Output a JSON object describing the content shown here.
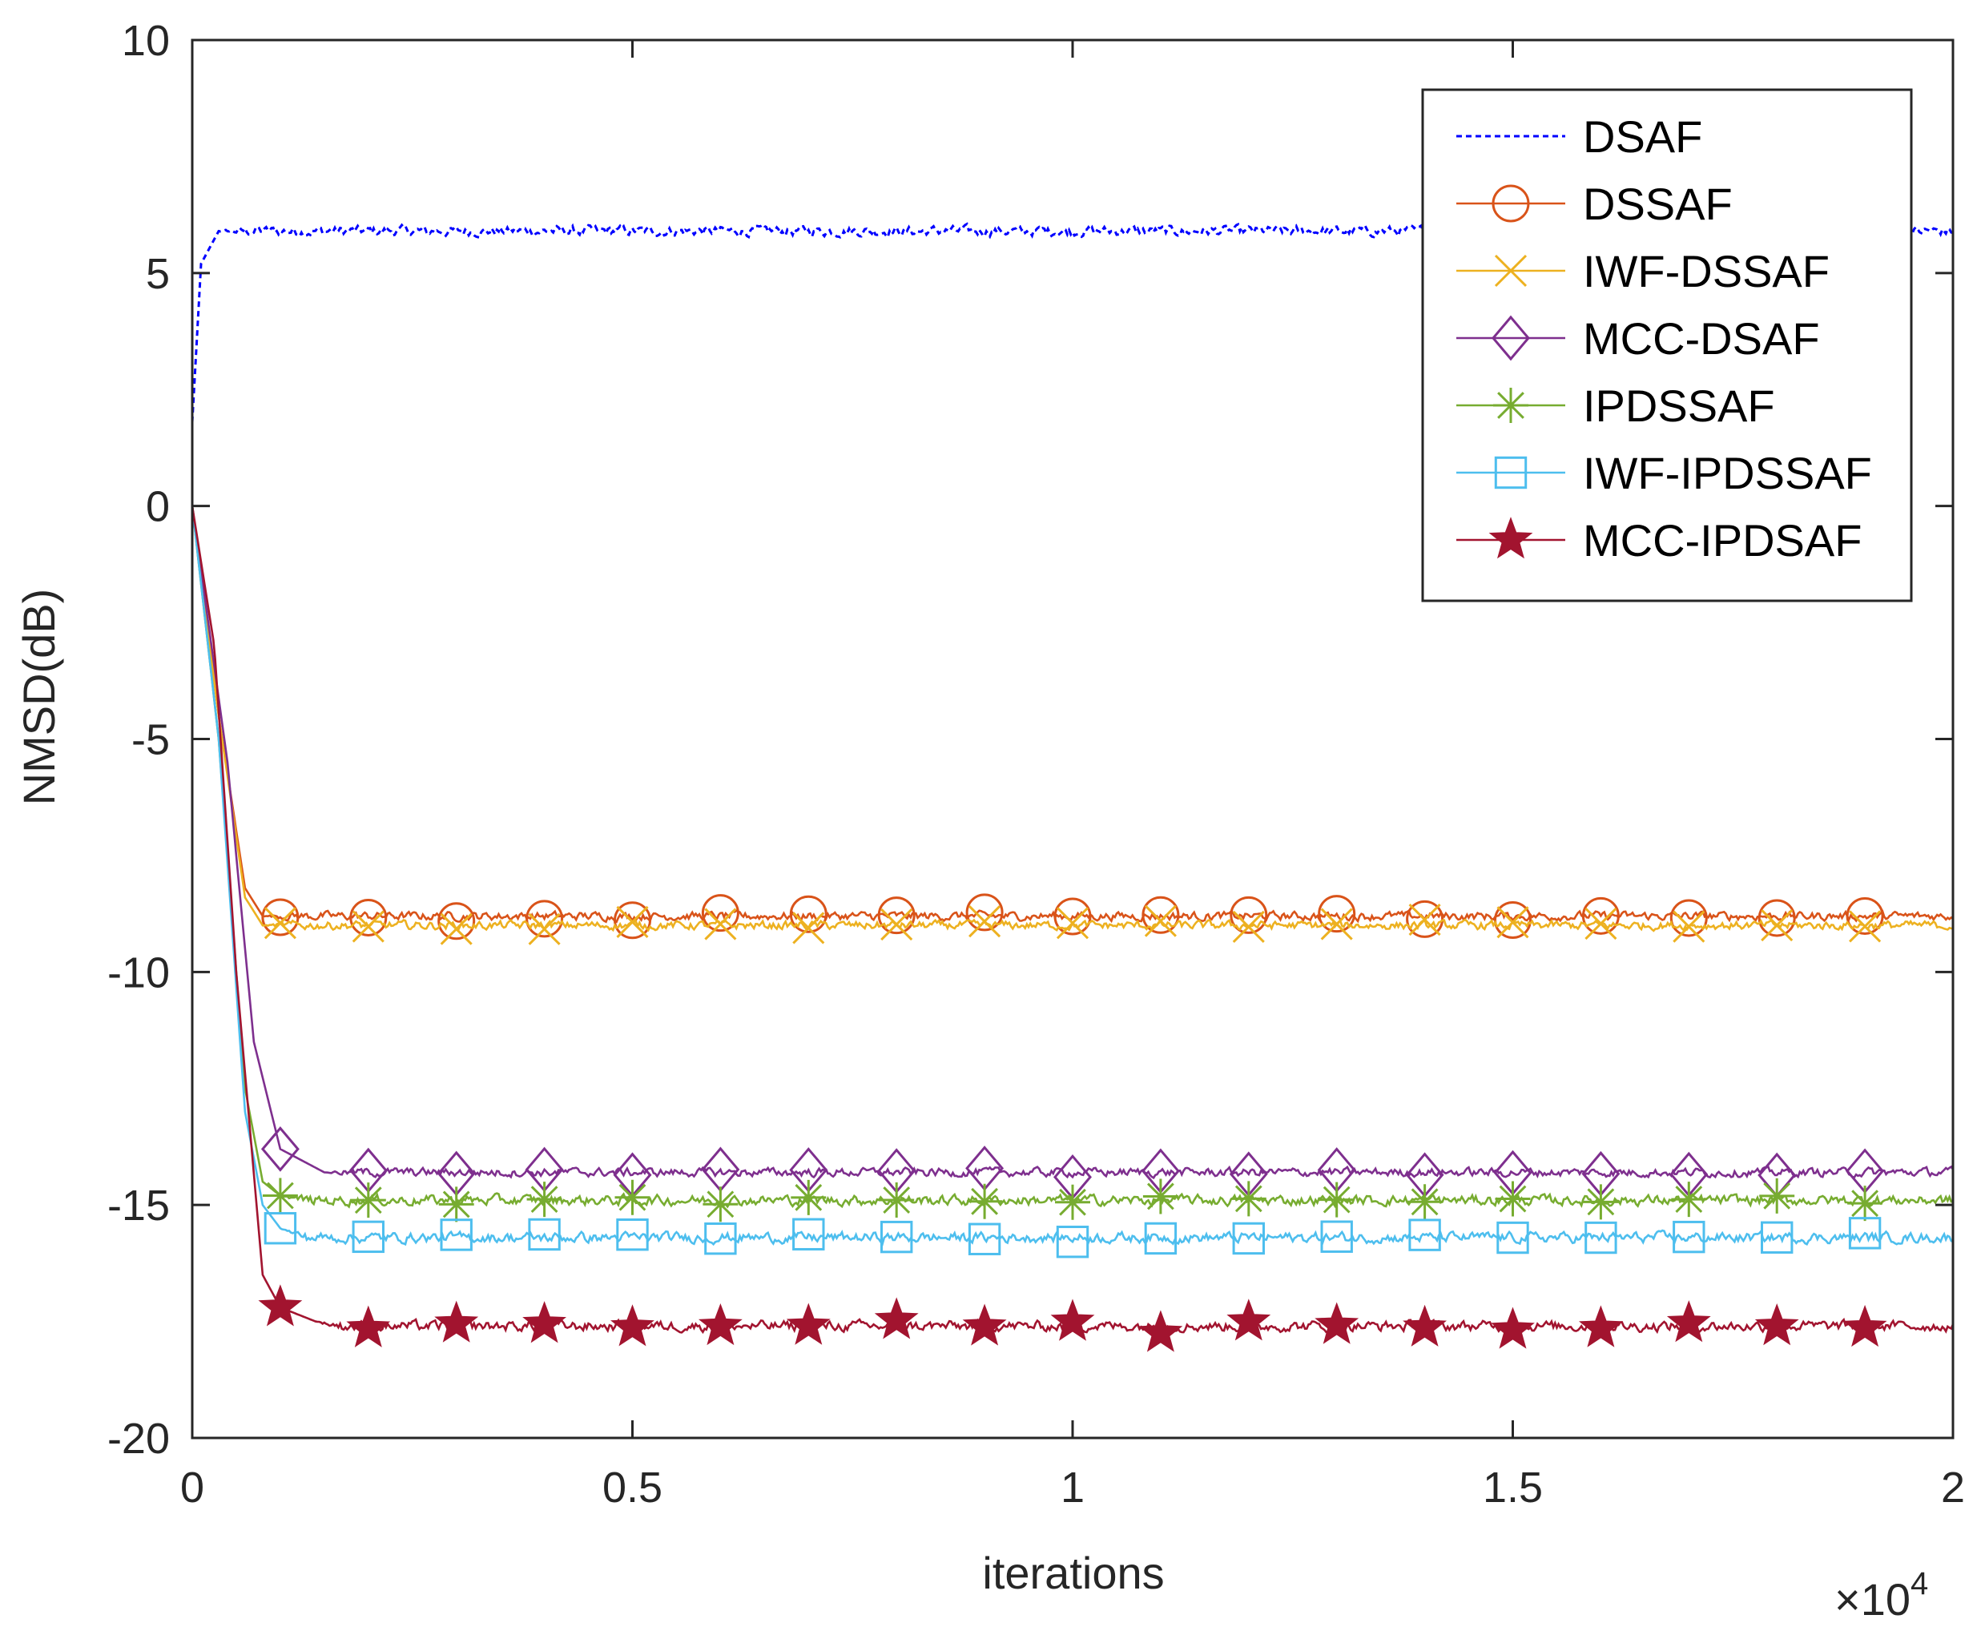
{
  "chart_data": {
    "type": "line",
    "title": "",
    "xlabel": "iterations",
    "ylabel": "NMSD(dB)",
    "xlim": [
      0,
      20000
    ],
    "ylim": [
      -20,
      10
    ],
    "x_ticks": [
      0,
      5000,
      10000,
      15000,
      20000
    ],
    "x_tick_labels": [
      "0",
      "0.5",
      "1",
      "1.5",
      "2"
    ],
    "x_multiplier": {
      "base": "×10",
      "exponent": "4"
    },
    "y_ticks": [
      10,
      5,
      0,
      -5,
      -10,
      -15,
      -20
    ],
    "y_tick_labels": [
      "10",
      "5",
      "0",
      "-5",
      "-10",
      "-15",
      "-20"
    ],
    "grid": false,
    "legend_position": "top-right",
    "series": [
      {
        "name": "DSAF",
        "color": "#0000FF",
        "style": "dashed",
        "marker": "none",
        "start": 1.8,
        "transient": [
          [
            100,
            5.2
          ],
          [
            300,
            5.9
          ]
        ],
        "steady": 5.9,
        "noise": 0.12,
        "markers_at": []
      },
      {
        "name": "DSSAF",
        "color": "#D95319",
        "style": "solid",
        "marker": "circle",
        "start": 0,
        "transient": [
          [
            300,
            -4.5
          ],
          [
            600,
            -8.2
          ],
          [
            800,
            -8.8
          ]
        ],
        "steady": -8.8,
        "noise": 0.1,
        "markers_at": [
          1000,
          2000,
          3000,
          4000,
          5000,
          6000,
          7000,
          8000,
          9000,
          10000,
          11000,
          12000,
          13000,
          14000,
          15000,
          16000,
          17000,
          18000,
          19000
        ]
      },
      {
        "name": "IWF-DSSAF",
        "color": "#EDB120",
        "style": "solid",
        "marker": "x",
        "start": 0,
        "transient": [
          [
            300,
            -4.5
          ],
          [
            600,
            -8.4
          ],
          [
            800,
            -9.0
          ]
        ],
        "steady": -9.0,
        "noise": 0.1,
        "markers_at": [
          1000,
          2000,
          3000,
          4000,
          5000,
          6000,
          7000,
          8000,
          9000,
          10000,
          11000,
          12000,
          13000,
          14000,
          15000,
          16000,
          17000,
          18000,
          19000
        ]
      },
      {
        "name": "MCC-DSAF",
        "color": "#7E2F8E",
        "style": "solid",
        "marker": "diamond",
        "start": 0,
        "transient": [
          [
            400,
            -5.5
          ],
          [
            700,
            -11.5
          ],
          [
            1000,
            -13.8
          ],
          [
            1500,
            -14.3
          ]
        ],
        "steady": -14.3,
        "noise": 0.1,
        "markers_at": [
          1000,
          2000,
          3000,
          4000,
          5000,
          6000,
          7000,
          8000,
          9000,
          10000,
          11000,
          12000,
          13000,
          14000,
          15000,
          16000,
          17000,
          18000,
          19000
        ]
      },
      {
        "name": "IPDSSAF",
        "color": "#77AC30",
        "style": "solid",
        "marker": "asterisk",
        "start": 0,
        "transient": [
          [
            300,
            -5.0
          ],
          [
            600,
            -12.5
          ],
          [
            800,
            -14.5
          ],
          [
            1000,
            -14.8
          ]
        ],
        "steady": -14.9,
        "noise": 0.12,
        "markers_at": [
          1000,
          2000,
          3000,
          4000,
          5000,
          6000,
          7000,
          8000,
          9000,
          10000,
          11000,
          12000,
          13000,
          14000,
          15000,
          16000,
          17000,
          18000,
          19000
        ]
      },
      {
        "name": "IWF-IPDSSAF",
        "color": "#4DBEEE",
        "style": "solid",
        "marker": "square",
        "start": 0,
        "transient": [
          [
            300,
            -5.0
          ],
          [
            600,
            -13.0
          ],
          [
            800,
            -15.0
          ],
          [
            1000,
            -15.5
          ]
        ],
        "steady": -15.7,
        "noise": 0.12,
        "markers_at": [
          1000,
          2000,
          3000,
          4000,
          5000,
          6000,
          7000,
          8000,
          9000,
          10000,
          11000,
          12000,
          13000,
          14000,
          15000,
          16000,
          17000,
          18000,
          19000
        ]
      },
      {
        "name": "MCC-IPDSAF",
        "color": "#A2142F",
        "style": "solid",
        "marker": "pentagram",
        "start": 0,
        "transient": [
          [
            250,
            -3.0
          ],
          [
            500,
            -10.0
          ],
          [
            800,
            -16.5
          ],
          [
            1000,
            -17.2
          ],
          [
            1400,
            -17.5
          ]
        ],
        "steady": -17.6,
        "noise": 0.12,
        "markers_at": [
          1000,
          2000,
          3000,
          4000,
          5000,
          6000,
          7000,
          8000,
          9000,
          10000,
          11000,
          12000,
          13000,
          14000,
          15000,
          16000,
          17000,
          18000,
          19000
        ]
      }
    ]
  }
}
